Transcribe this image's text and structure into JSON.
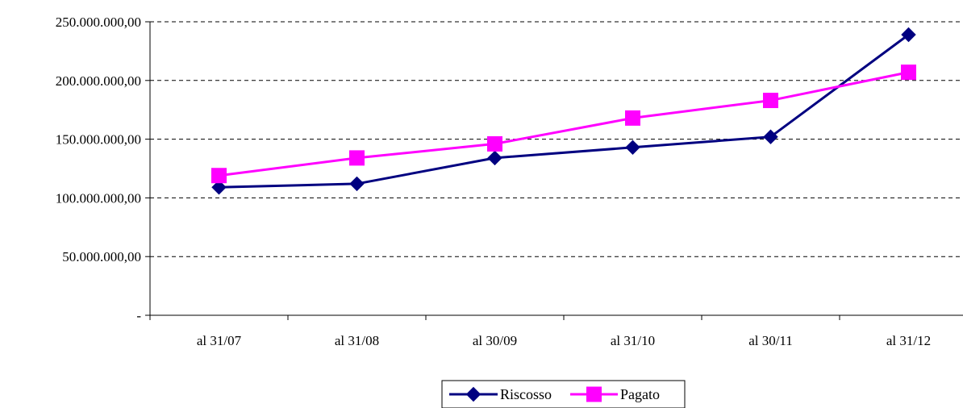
{
  "chart_data": {
    "type": "line",
    "categories": [
      "al 31/07",
      "al 31/08",
      "al 30/09",
      "al 31/10",
      "al 30/11",
      "al 31/12"
    ],
    "series": [
      {
        "name": "Riscosso",
        "values": [
          109000000,
          112000000,
          134000000,
          143000000,
          152000000,
          239000000
        ],
        "color": "#000080",
        "marker": "diamond"
      },
      {
        "name": "Pagato",
        "values": [
          119000000,
          134000000,
          146000000,
          168000000,
          183000000,
          207000000
        ],
        "color": "#ff00ff",
        "marker": "square"
      }
    ],
    "y_ticks": [
      0,
      50000000,
      100000000,
      150000000,
      200000000,
      250000000
    ],
    "y_tick_labels": [
      "-",
      "50.000.000,00",
      "100.000.000,00",
      "150.000.000,00",
      "200.000.000,00",
      "250.000.000,00"
    ],
    "ylim": [
      0,
      250000000
    ],
    "grid": "horizontal dashed",
    "legend_position": "bottom",
    "title": "",
    "xlabel": "",
    "ylabel": ""
  }
}
